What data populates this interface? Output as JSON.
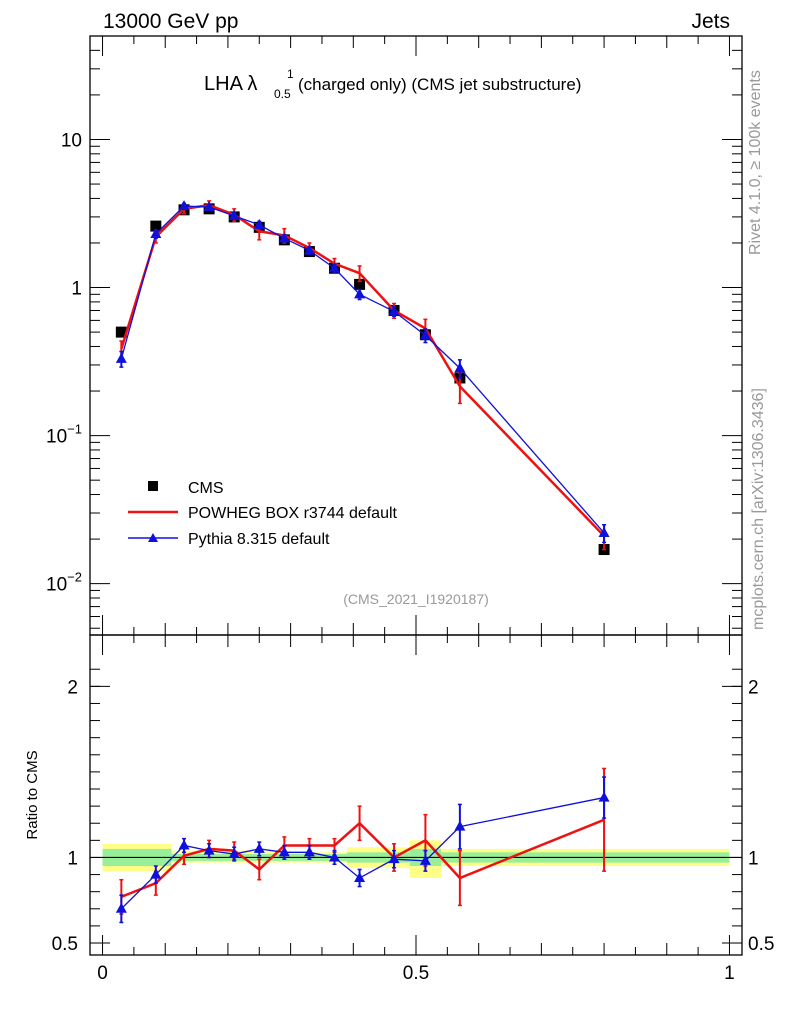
{
  "header": {
    "left": "13000 GeV pp",
    "right": "Jets"
  },
  "side_labels": {
    "rivet": "Rivet 4.1.0, ≥ 100k events",
    "mcplots": "mcplots.cern.ch [arXiv:1306.3436]"
  },
  "title": {
    "prefix": "LHA λ",
    "sup": "1",
    "sub": "0.5",
    "suffix": " (charged only) (CMS jet substructure)"
  },
  "analysis_tag": "(CMS_2021_I1920187)",
  "colors": {
    "data": "#000000",
    "powheg": "#ee1111",
    "pythia": "#1010dd",
    "band_inner": "#99ee99",
    "band_outer": "#ffff88"
  },
  "chart_data": [
    {
      "type": "line",
      "yscale": "log",
      "ylim": [
        0.0045,
        50
      ],
      "xlim": [
        -0.02,
        1.02
      ],
      "yticks": [
        {
          "value": 10,
          "base": "10",
          "exp": ""
        },
        {
          "value": 1,
          "base": "1",
          "exp": ""
        },
        {
          "value": 0.1,
          "base": "10",
          "exp": "−1"
        },
        {
          "value": 0.01,
          "base": "10",
          "exp": "−2"
        }
      ],
      "legend": [
        {
          "key": "data",
          "label": "CMS"
        },
        {
          "key": "powheg",
          "label": "POWHEG BOX r3744 default"
        },
        {
          "key": "pythia",
          "label": "Pythia 8.315 default"
        }
      ],
      "series": [
        {
          "key": "data",
          "name": "CMS",
          "x": [
            0.03,
            0.085,
            0.13,
            0.17,
            0.21,
            0.25,
            0.29,
            0.33,
            0.37,
            0.41,
            0.465,
            0.515,
            0.57,
            0.8
          ],
          "y": [
            0.5,
            2.6,
            3.35,
            3.4,
            3.0,
            2.55,
            2.1,
            1.75,
            1.35,
            1.05,
            0.7,
            0.48,
            0.245,
            0.017
          ]
        },
        {
          "key": "powheg",
          "name": "POWHEG BOX r3744 default",
          "x": [
            0.03,
            0.085,
            0.13,
            0.17,
            0.21,
            0.25,
            0.29,
            0.33,
            0.37,
            0.41,
            0.465,
            0.515,
            0.57,
            0.8
          ],
          "y": [
            0.385,
            2.2,
            3.4,
            3.6,
            3.1,
            2.4,
            2.25,
            1.85,
            1.45,
            1.25,
            0.7,
            0.53,
            0.215,
            0.021
          ],
          "err": [
            0.05,
            0.2,
            0.25,
            0.25,
            0.3,
            0.3,
            0.25,
            0.15,
            0.12,
            0.15,
            0.08,
            0.08,
            0.05,
            0.004
          ]
        },
        {
          "key": "pythia",
          "name": "Pythia 8.315 default",
          "x": [
            0.03,
            0.085,
            0.13,
            0.17,
            0.21,
            0.25,
            0.29,
            0.33,
            0.37,
            0.41,
            0.465,
            0.515,
            0.57,
            0.8
          ],
          "y": [
            0.33,
            2.3,
            3.55,
            3.5,
            3.05,
            2.65,
            2.15,
            1.78,
            1.35,
            0.9,
            0.69,
            0.475,
            0.285,
            0.022
          ],
          "err": [
            0.04,
            0.15,
            0.15,
            0.15,
            0.15,
            0.15,
            0.12,
            0.1,
            0.08,
            0.07,
            0.05,
            0.05,
            0.04,
            0.003
          ]
        }
      ]
    },
    {
      "type": "line",
      "ylabel": "Ratio to CMS",
      "ylim": [
        0.43,
        2.3
      ],
      "xlim": [
        -0.02,
        1.02
      ],
      "yticks": [
        {
          "value": 2,
          "label": "2"
        },
        {
          "value": 1,
          "label": "1"
        },
        {
          "value": 0.5,
          "label": "0.5"
        }
      ],
      "xticks": [
        {
          "value": 0,
          "label": "0"
        },
        {
          "value": 0.5,
          "label": "0.5"
        },
        {
          "value": 1,
          "label": "1"
        }
      ],
      "bands": [
        {
          "x0": 0.0,
          "x1": 0.11,
          "inner": [
            0.95,
            1.05
          ],
          "outer": [
            0.92,
            1.08
          ]
        },
        {
          "x0": 0.11,
          "x1": 0.3,
          "inner": [
            0.98,
            1.02
          ],
          "outer": [
            0.97,
            1.04
          ]
        },
        {
          "x0": 0.3,
          "x1": 0.39,
          "inner": [
            0.98,
            1.02
          ],
          "outer": [
            0.97,
            1.03
          ]
        },
        {
          "x0": 0.39,
          "x1": 0.49,
          "inner": [
            0.97,
            1.03
          ],
          "outer": [
            0.94,
            1.06
          ]
        },
        {
          "x0": 0.49,
          "x1": 0.54,
          "inner": [
            0.95,
            1.05
          ],
          "outer": [
            0.88,
            1.1
          ]
        },
        {
          "x0": 0.54,
          "x1": 1.0,
          "inner": [
            0.97,
            1.03
          ],
          "outer": [
            0.95,
            1.05
          ]
        }
      ],
      "series": [
        {
          "key": "powheg",
          "name": "POWHEG BOX r3744 default",
          "x": [
            0.03,
            0.085,
            0.13,
            0.17,
            0.21,
            0.25,
            0.29,
            0.33,
            0.37,
            0.41,
            0.465,
            0.515,
            0.57,
            0.8
          ],
          "y": [
            0.77,
            0.85,
            1.01,
            1.05,
            1.04,
            0.93,
            1.07,
            1.07,
            1.07,
            1.2,
            1.0,
            1.1,
            0.88,
            1.22
          ],
          "err": [
            0.1,
            0.07,
            0.05,
            0.05,
            0.05,
            0.06,
            0.05,
            0.04,
            0.04,
            0.1,
            0.08,
            0.15,
            0.16,
            0.3
          ]
        },
        {
          "key": "pythia",
          "name": "Pythia 8.315 default",
          "x": [
            0.03,
            0.085,
            0.13,
            0.17,
            0.21,
            0.25,
            0.29,
            0.33,
            0.37,
            0.41,
            0.465,
            0.515,
            0.57,
            0.8
          ],
          "y": [
            0.7,
            0.9,
            1.07,
            1.04,
            1.02,
            1.05,
            1.03,
            1.03,
            1.0,
            0.88,
            0.99,
            0.98,
            1.18,
            1.35
          ],
          "err": [
            0.08,
            0.05,
            0.04,
            0.04,
            0.04,
            0.04,
            0.04,
            0.04,
            0.04,
            0.05,
            0.05,
            0.06,
            0.13,
            0.12
          ]
        }
      ]
    }
  ]
}
